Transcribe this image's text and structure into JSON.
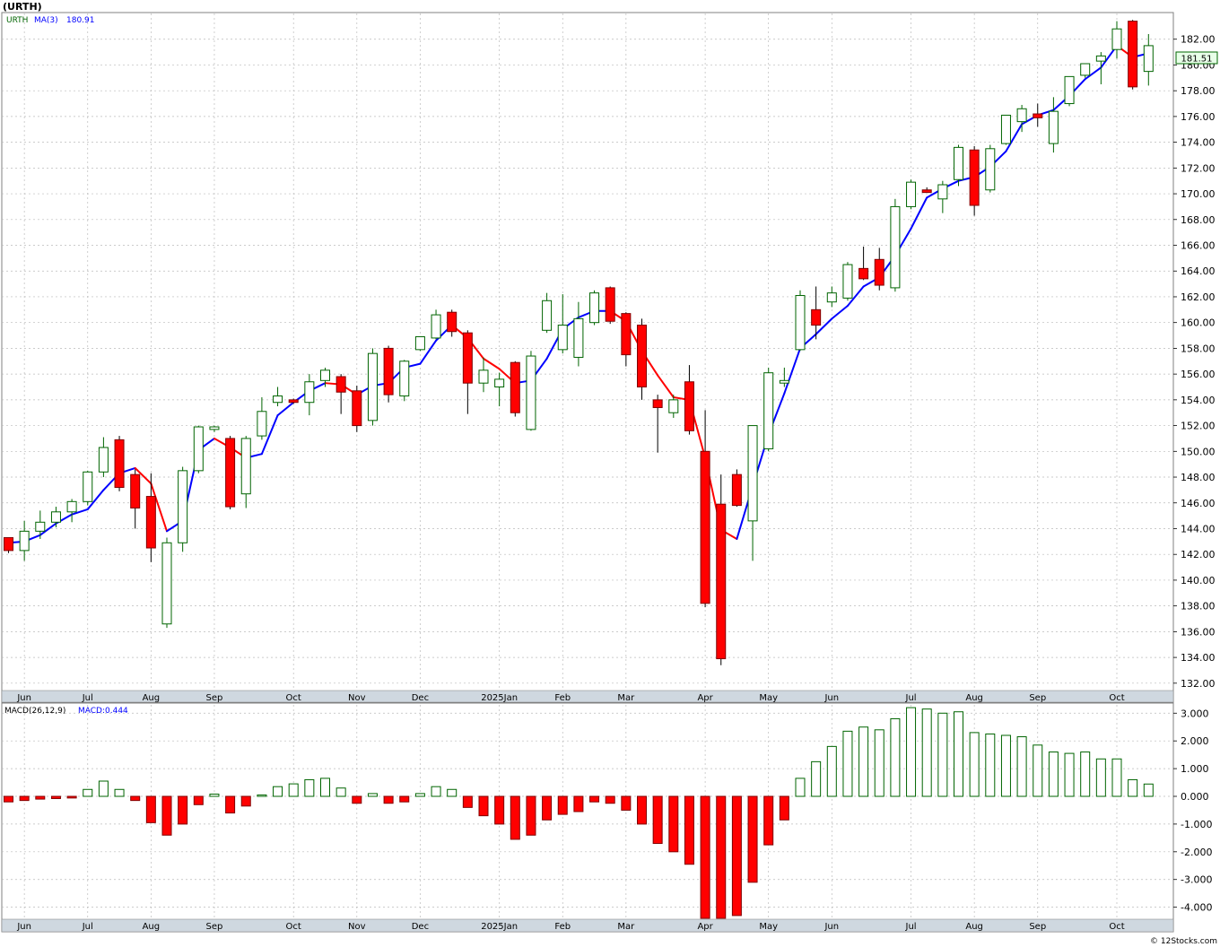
{
  "title": "(URTH)",
  "legend": {
    "ticker": "URTH",
    "ma_label": "MA(3)",
    "ma_value": "180.91"
  },
  "last_price": "181.51",
  "macd_legend": {
    "label": "MACD(26,12,9)",
    "value_label": "MACD:0.444"
  },
  "footer": "© 12Stocks.com",
  "colors": {
    "up": "#006400",
    "down": "#ff0000",
    "ma_up": "#0000ff",
    "ma_down": "#ff0000",
    "axis_band": "#cfd8e0",
    "grid": "#bbbbbb"
  },
  "chart_data": [
    {
      "type": "candlestick",
      "ylim": [
        131.5,
        184.0
      ],
      "y_ticks": [
        "132.00",
        "134.00",
        "136.00",
        "138.00",
        "140.00",
        "142.00",
        "144.00",
        "146.00",
        "148.00",
        "150.00",
        "152.00",
        "154.00",
        "156.00",
        "158.00",
        "160.00",
        "162.00",
        "164.00",
        "166.00",
        "168.00",
        "170.00",
        "172.00",
        "174.00",
        "176.00",
        "178.00",
        "180.00",
        "182.00"
      ],
      "x_labels": [
        "Jun",
        "Jul",
        "Aug",
        "Sep",
        "Oct",
        "Nov",
        "Dec",
        "2025Jan",
        "Feb",
        "Mar",
        "Apr",
        "May",
        "Jun",
        "Jul",
        "Aug",
        "Sep",
        "Oct"
      ],
      "x_label_index": [
        1,
        5,
        9,
        13,
        18,
        22,
        26,
        31,
        35,
        39,
        44,
        48,
        52,
        57,
        61,
        65,
        70
      ],
      "grid": true,
      "series": [
        {
          "name": "URTH",
          "ohlc": [
            [
              143.3,
              143.3,
              142.1,
              142.3
            ],
            [
              142.3,
              144.6,
              141.5,
              143.8
            ],
            [
              143.8,
              145.4,
              143.2,
              144.5
            ],
            [
              144.5,
              145.7,
              144.1,
              145.3
            ],
            [
              145.3,
              146.3,
              144.5,
              146.1
            ],
            [
              146.1,
              148.5,
              145.8,
              148.4
            ],
            [
              148.4,
              151.1,
              148.0,
              150.3
            ],
            [
              150.9,
              151.2,
              146.9,
              147.2
            ],
            [
              148.2,
              148.6,
              144.0,
              145.6
            ],
            [
              146.5,
              148.3,
              141.4,
              142.5
            ],
            [
              136.6,
              143.3,
              136.3,
              142.9
            ],
            [
              142.9,
              148.8,
              142.2,
              148.5
            ],
            [
              148.5,
              152.0,
              148.3,
              151.9
            ],
            [
              151.7,
              152.0,
              151.5,
              151.9
            ],
            [
              151.0,
              151.2,
              145.5,
              145.7
            ],
            [
              146.7,
              151.2,
              145.6,
              151.0
            ],
            [
              151.2,
              154.2,
              150.9,
              153.1
            ],
            [
              153.8,
              155.0,
              153.5,
              154.3
            ],
            [
              154.0,
              154.1,
              153.7,
              153.8
            ],
            [
              153.8,
              156.0,
              152.8,
              155.4
            ],
            [
              155.5,
              156.5,
              155.0,
              156.3
            ],
            [
              155.8,
              156.0,
              152.9,
              154.6
            ],
            [
              154.7,
              155.1,
              151.5,
              152.0
            ],
            [
              152.4,
              158.0,
              152.0,
              157.6
            ],
            [
              158.0,
              158.2,
              153.8,
              154.4
            ],
            [
              154.3,
              157.1,
              153.9,
              157.0
            ],
            [
              157.9,
              158.9,
              157.8,
              158.9
            ],
            [
              158.8,
              161.0,
              158.7,
              160.6
            ],
            [
              160.8,
              161.0,
              158.9,
              159.3
            ],
            [
              159.2,
              159.4,
              152.9,
              155.3
            ],
            [
              155.3,
              157.3,
              154.6,
              156.3
            ],
            [
              155.0,
              156.1,
              153.5,
              155.6
            ],
            [
              156.9,
              157.0,
              152.7,
              153.0
            ],
            [
              151.7,
              157.8,
              151.6,
              157.4
            ],
            [
              159.4,
              162.3,
              159.2,
              161.7
            ],
            [
              157.9,
              162.2,
              157.6,
              159.8
            ],
            [
              157.3,
              161.6,
              156.6,
              160.3
            ],
            [
              160.0,
              162.5,
              159.8,
              162.3
            ],
            [
              162.7,
              162.8,
              159.9,
              160.1
            ],
            [
              160.7,
              160.8,
              156.6,
              157.5
            ],
            [
              159.8,
              160.3,
              154.0,
              155.0
            ],
            [
              154.0,
              154.4,
              149.9,
              153.4
            ],
            [
              153.0,
              154.4,
              152.6,
              154.0
            ],
            [
              155.4,
              156.7,
              151.3,
              151.6
            ],
            [
              150.0,
              153.2,
              137.9,
              138.2
            ],
            [
              145.9,
              148.2,
              133.4,
              133.9
            ],
            [
              148.2,
              148.6,
              145.7,
              145.8
            ],
            [
              144.6,
              152.0,
              141.5,
              152.0
            ],
            [
              150.2,
              156.5,
              150.0,
              156.1
            ],
            [
              155.3,
              156.5,
              155.0,
              155.5
            ],
            [
              157.9,
              162.5,
              157.8,
              162.1
            ],
            [
              161.0,
              162.8,
              158.7,
              159.8
            ],
            [
              161.6,
              162.8,
              161.2,
              162.3
            ],
            [
              161.9,
              164.7,
              161.7,
              164.5
            ],
            [
              164.2,
              165.9,
              163.3,
              163.4
            ],
            [
              164.9,
              165.8,
              162.5,
              162.9
            ],
            [
              162.7,
              169.6,
              162.4,
              169.0
            ],
            [
              169.0,
              171.1,
              168.8,
              170.9
            ],
            [
              170.3,
              170.5,
              170.1,
              170.1
            ],
            [
              169.6,
              171.0,
              168.5,
              170.7
            ],
            [
              171.1,
              173.8,
              170.6,
              173.6
            ],
            [
              173.4,
              173.7,
              168.3,
              169.1
            ],
            [
              170.3,
              173.8,
              170.1,
              173.5
            ],
            [
              173.9,
              176.1,
              173.8,
              176.1
            ],
            [
              175.6,
              176.9,
              174.8,
              176.6
            ],
            [
              176.2,
              177.0,
              175.2,
              175.9
            ],
            [
              173.9,
              177.5,
              173.2,
              176.4
            ],
            [
              177.0,
              179.1,
              176.8,
              179.1
            ],
            [
              179.2,
              180.1,
              179.0,
              180.1
            ],
            [
              180.3,
              181.0,
              178.5,
              180.7
            ],
            [
              181.2,
              183.4,
              180.5,
              182.8
            ],
            [
              183.4,
              183.5,
              178.1,
              178.3
            ],
            [
              179.5,
              182.4,
              178.4,
              181.5
            ]
          ],
          "ma3": [
            142.9,
            143.0,
            143.5,
            144.4,
            145.1,
            145.5,
            147.0,
            148.3,
            148.7,
            147.5,
            143.8,
            144.6,
            150.1,
            151.0,
            150.3,
            149.5,
            149.8,
            152.8,
            153.8,
            154.7,
            155.3,
            155.2,
            154.4,
            155.1,
            155.3,
            156.5,
            156.8,
            158.6,
            159.8,
            158.8,
            157.2,
            156.4,
            155.3,
            155.5,
            157.2,
            159.5,
            160.4,
            160.9,
            160.9,
            160.1,
            157.8,
            155.9,
            154.2,
            154.0,
            149.5,
            143.9,
            143.2,
            147.3,
            151.3,
            154.5,
            158.0,
            159.1,
            160.3,
            161.3,
            162.8,
            163.5,
            165.2,
            167.3,
            169.7,
            170.4,
            171.0,
            171.3,
            172.1,
            173.3,
            175.4,
            176.1,
            176.5,
            177.6,
            178.9,
            179.8,
            181.5,
            180.6,
            180.91
          ],
          "ma_color_by_direction": true
        }
      ]
    },
    {
      "type": "bar",
      "title": "MACD(26,12,9)",
      "ylim": [
        -4.4,
        3.3
      ],
      "y_ticks": [
        "3.000",
        "2.000",
        "1.000",
        "0.000",
        "-1.000",
        "-2.000",
        "-3.000",
        "-4.000"
      ],
      "y_tick_values": [
        3,
        2,
        1,
        0,
        -1,
        -2,
        -3,
        -4
      ],
      "x_labels": [
        "Jun",
        "Jul",
        "Aug",
        "Sep",
        "Oct",
        "Nov",
        "Dec",
        "2025Jan",
        "Feb",
        "Mar",
        "Apr",
        "May",
        "Jun",
        "Jul",
        "Aug",
        "Sep",
        "Oct"
      ],
      "series": [
        {
          "name": "MACD",
          "values": [
            -0.2,
            -0.15,
            -0.1,
            -0.08,
            -0.06,
            0.25,
            0.55,
            0.25,
            -0.15,
            -0.95,
            -1.4,
            -1.0,
            -0.3,
            0.08,
            -0.6,
            -0.35,
            0.05,
            0.35,
            0.45,
            0.6,
            0.65,
            0.3,
            -0.25,
            0.1,
            -0.25,
            -0.2,
            0.1,
            0.35,
            0.25,
            -0.4,
            -0.7,
            -1.0,
            -1.55,
            -1.4,
            -0.85,
            -0.65,
            -0.55,
            -0.2,
            -0.25,
            -0.5,
            -1.0,
            -1.7,
            -2.0,
            -2.45,
            -4.4,
            -4.4,
            -4.3,
            -3.1,
            -1.75,
            -0.85,
            0.65,
            1.25,
            1.8,
            2.35,
            2.5,
            2.4,
            2.8,
            3.2,
            3.15,
            3.0,
            3.05,
            2.3,
            2.25,
            2.2,
            2.15,
            1.85,
            1.6,
            1.55,
            1.6,
            1.35,
            1.35,
            0.6,
            0.444
          ]
        }
      ]
    }
  ]
}
